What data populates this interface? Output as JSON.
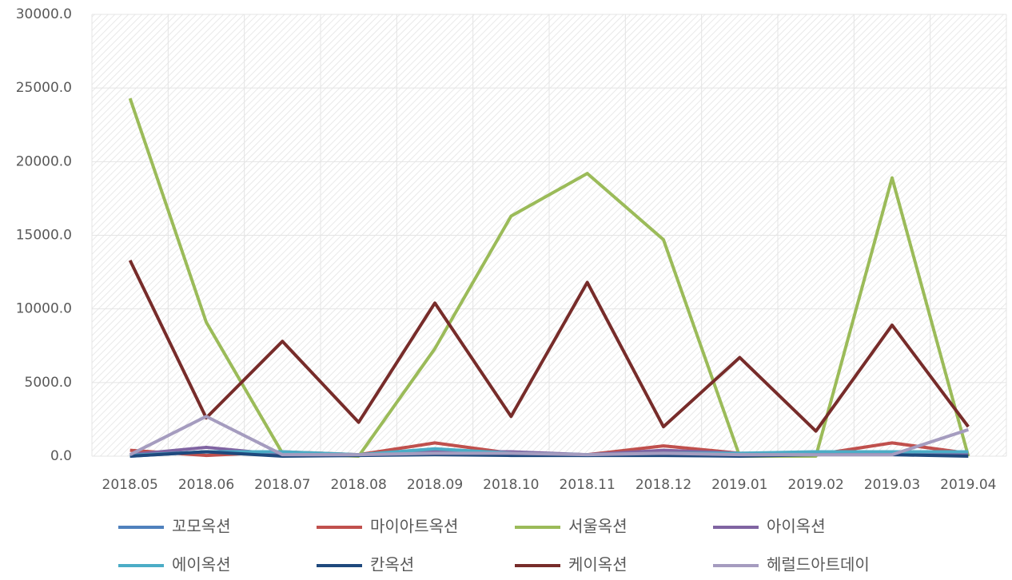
{
  "chart_data": {
    "type": "line",
    "categories": [
      "2018.05",
      "2018.06",
      "2018.07",
      "2018.08",
      "2018.09",
      "2018.10",
      "2018.11",
      "2018.12",
      "2019.01",
      "2019.02",
      "2019.03",
      "2019.04"
    ],
    "series": [
      {
        "name": "꼬모옥션",
        "color": "#4f81bd",
        "values": [
          0,
          300,
          50,
          50,
          200,
          100,
          50,
          100,
          50,
          100,
          200,
          100
        ]
      },
      {
        "name": "마이아트옥션",
        "color": "#c0504d",
        "values": [
          400,
          50,
          300,
          100,
          900,
          200,
          100,
          700,
          200,
          100,
          900,
          200
        ]
      },
      {
        "name": "서울옥션",
        "color": "#9bbb59",
        "values": [
          24300,
          9100,
          200,
          0,
          7300,
          16300,
          19200,
          14700,
          0,
          0,
          18900,
          0
        ]
      },
      {
        "name": "아이옥션",
        "color": "#8064a2",
        "values": [
          100,
          600,
          100,
          100,
          300,
          300,
          100,
          400,
          200,
          200,
          300,
          100
        ]
      },
      {
        "name": "에이옥션",
        "color": "#4bacc6",
        "values": [
          50,
          300,
          300,
          100,
          500,
          200,
          100,
          200,
          200,
          300,
          300,
          300
        ]
      },
      {
        "name": "칸옥션",
        "color": "#1f497d",
        "values": [
          0,
          300,
          0,
          50,
          100,
          50,
          50,
          50,
          0,
          100,
          100,
          0
        ]
      },
      {
        "name": "케이옥션",
        "color": "#772c2a",
        "values": [
          13300,
          2600,
          7800,
          2300,
          10400,
          2700,
          11800,
          2000,
          6700,
          1700,
          8900,
          2000
        ]
      },
      {
        "name": "헤럴드아트데이",
        "color": "#a59cbf",
        "values": [
          100,
          2700,
          100,
          100,
          200,
          200,
          100,
          200,
          100,
          100,
          100,
          1800
        ]
      }
    ],
    "ylim": [
      0,
      30000
    ],
    "yticks": [
      {
        "value": 0,
        "label": "0.0"
      },
      {
        "value": 5000,
        "label": "5000.0"
      },
      {
        "value": 10000,
        "label": "10000.0"
      },
      {
        "value": 15000,
        "label": "15000.0"
      },
      {
        "value": 20000,
        "label": "20000.0"
      },
      {
        "value": 25000,
        "label": "25000.0"
      },
      {
        "value": 30000,
        "label": "30000.0"
      }
    ],
    "grid": true,
    "legend": "bottom"
  }
}
